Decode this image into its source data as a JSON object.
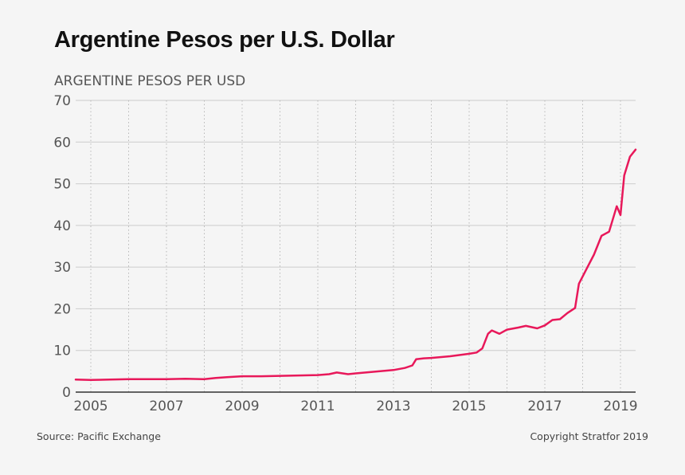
{
  "title": "Argentine Pesos per U.S. Dollar",
  "footer": {
    "source": "Source: Pacific Exchange",
    "copyright": "Copyright Stratfor 2019"
  },
  "colors": {
    "line": "#e8185a",
    "grid": "#cccccc",
    "tick_text": "#555555",
    "axis": "#333333"
  },
  "chart_data": {
    "type": "line",
    "title": "Argentine Pesos per U.S. Dollar",
    "ylabel": "ARGENTINE PESOS PER USD",
    "xlabel": "",
    "ylim": [
      0,
      70
    ],
    "xlim": [
      2004.6,
      2019.4
    ],
    "yticks": [
      0,
      10,
      20,
      30,
      40,
      50,
      60,
      70
    ],
    "xticks": [
      "2005",
      "2007",
      "2009",
      "2011",
      "2013",
      "2015",
      "2017",
      "2019"
    ],
    "grid": "horizontal solid, vertical dotted",
    "series": [
      {
        "x": [
          2004.6,
          2005.0,
          2005.5,
          2006.0,
          2006.5,
          2007.0,
          2007.5,
          2008.0,
          2008.3,
          2008.6,
          2009.0,
          2009.5,
          2010.0,
          2010.5,
          2011.0,
          2011.3,
          2011.5,
          2011.8,
          2012.0,
          2012.5,
          2013.0,
          2013.3,
          2013.5,
          2013.6,
          2013.8,
          2014.0,
          2014.5,
          2015.0,
          2015.2,
          2015.35,
          2015.5,
          2015.6,
          2015.8,
          2016.0,
          2016.3,
          2016.5,
          2016.8,
          2017.0,
          2017.2,
          2017.4,
          2017.6,
          2017.8,
          2017.9,
          2018.1,
          2018.3,
          2018.5,
          2018.7,
          2018.9,
          2019.0,
          2019.1,
          2019.25,
          2019.4
        ],
        "y": [
          3.0,
          2.9,
          3.0,
          3.1,
          3.1,
          3.1,
          3.2,
          3.1,
          3.4,
          3.6,
          3.8,
          3.8,
          3.9,
          4.0,
          4.1,
          4.3,
          4.7,
          4.3,
          4.5,
          4.9,
          5.3,
          5.8,
          6.4,
          7.9,
          8.1,
          8.2,
          8.6,
          9.2,
          9.5,
          10.5,
          14.0,
          14.8,
          14.0,
          15.0,
          15.5,
          15.9,
          15.3,
          16.0,
          17.3,
          17.5,
          19.0,
          20.2,
          26.0,
          29.5,
          33.0,
          37.5,
          38.5,
          44.6,
          42.5,
          52.0,
          56.5,
          58.2
        ]
      }
    ]
  }
}
